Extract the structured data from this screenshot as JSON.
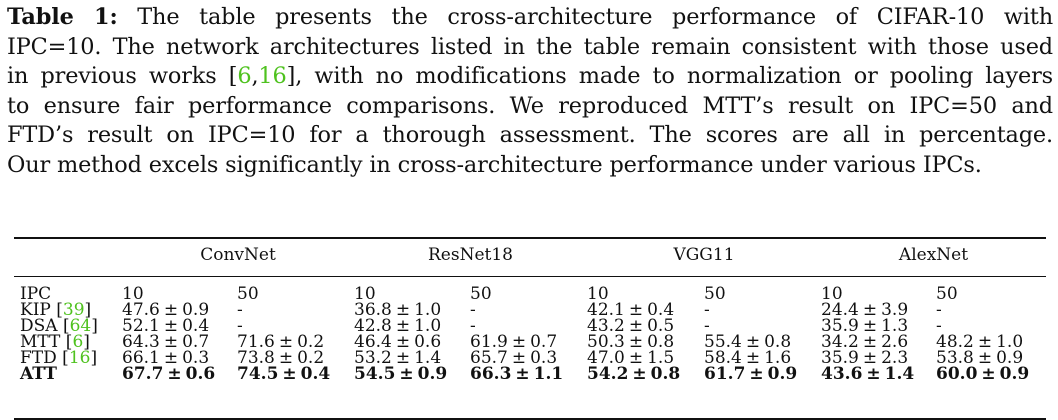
{
  "caption": {
    "label": "Table 1:",
    "l1_rest": " The table presents the cross-architecture performance of CIFAR-10 with",
    "l2": "IPC=10. The network architectures listed in the table remain consistent with those used",
    "l3_pre": "in previous works [",
    "l3_c1": "6",
    "l3_sep": ",",
    "l3_c2": "16",
    "l3_post": "], with no modifications made to normalization or pooling layers",
    "l4": "to ensure fair performance comparisons. We reproduced MTT’s result on IPC=50 and",
    "l5": "FTD’s result on IPC=10 for a thorough assessment. The scores are all in percentage.",
    "l6": "Our method excels significantly in cross-architecture performance under various IPCs."
  },
  "table": {
    "groups": [
      "ConvNet",
      "ResNet18",
      "VGG11",
      "AlexNet"
    ],
    "ipc_label": "IPC",
    "ipc_values": [
      "10",
      "50",
      "10",
      "50",
      "10",
      "50",
      "10",
      "50"
    ],
    "pm": "±",
    "rows": [
      {
        "method": "KIP",
        "ref": "39",
        "cells": [
          [
            "47.6",
            "0.9"
          ],
          "-",
          [
            "36.8",
            "1.0"
          ],
          "-",
          [
            "42.1",
            "0.4"
          ],
          "-",
          [
            "24.4",
            "3.9"
          ],
          "-"
        ]
      },
      {
        "method": "DSA",
        "ref": "64",
        "cells": [
          [
            "52.1",
            "0.4"
          ],
          "-",
          [
            "42.8",
            "1.0"
          ],
          "-",
          [
            "43.2",
            "0.5"
          ],
          "-",
          [
            "35.9",
            "1.3"
          ],
          "-"
        ]
      },
      {
        "method": "MTT",
        "ref": "6",
        "cells": [
          [
            "64.3",
            "0.7"
          ],
          [
            "71.6",
            "0.2"
          ],
          [
            "46.4",
            "0.6"
          ],
          [
            "61.9",
            "0.7"
          ],
          [
            "50.3",
            "0.8"
          ],
          [
            "55.4",
            "0.8"
          ],
          [
            "34.2",
            "2.6"
          ],
          [
            "48.2",
            "1.0"
          ]
        ]
      },
      {
        "method": "FTD",
        "ref": "16",
        "cells": [
          [
            "66.1",
            "0.3"
          ],
          [
            "73.8",
            "0.2"
          ],
          [
            "53.2",
            "1.4"
          ],
          [
            "65.7",
            "0.3"
          ],
          [
            "47.0",
            "1.5"
          ],
          [
            "58.4",
            "1.6"
          ],
          [
            "35.9",
            "2.3"
          ],
          [
            "53.8",
            "0.9"
          ]
        ]
      },
      {
        "method": "ATT",
        "ref": "",
        "bold": true,
        "cells": [
          [
            "67.7",
            "0.6"
          ],
          [
            "74.5",
            "0.4"
          ],
          [
            "54.5",
            "0.9"
          ],
          [
            "66.3",
            "1.1"
          ],
          [
            "54.2",
            "0.8"
          ],
          [
            "61.7",
            "0.9"
          ],
          [
            "43.6",
            "1.4"
          ],
          [
            "60.0",
            "0.9"
          ]
        ]
      }
    ]
  }
}
